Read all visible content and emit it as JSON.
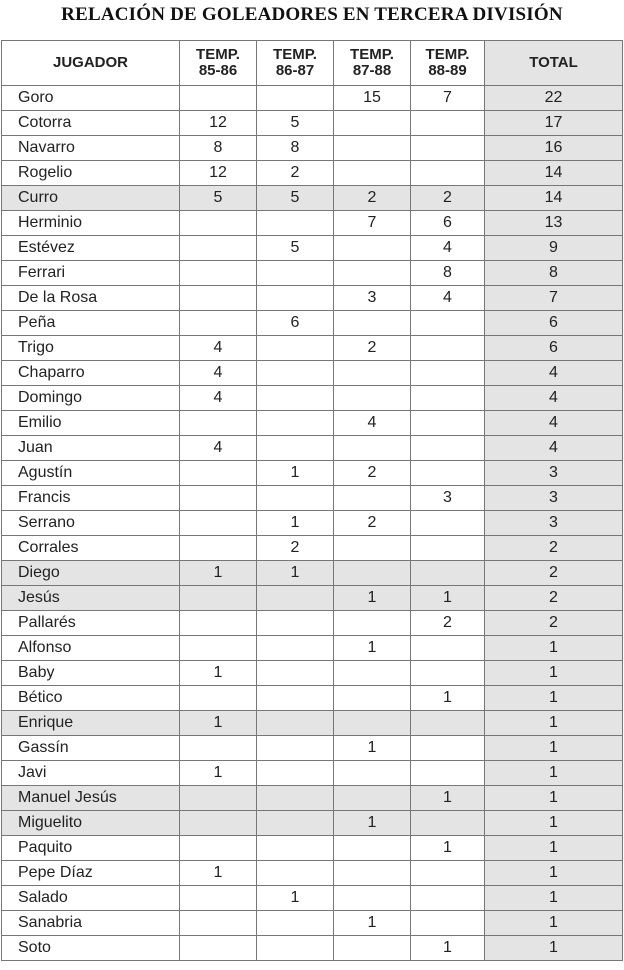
{
  "title": "RELACIÓN DE GOLEADORES EN TERCERA DIVISIÓN",
  "headers": [
    "JUGADOR",
    "TEMP.\n85-86",
    "TEMP.\n86-87",
    "TEMP.\n87-88",
    "TEMP.\n88-89",
    "TOTAL"
  ],
  "highlight_color": "#e4e4e4",
  "rows": [
    {
      "name": "Goro",
      "s1": "",
      "s2": "",
      "s3": "15",
      "s4": "7",
      "total": "22",
      "shaded": false
    },
    {
      "name": "Cotorra",
      "s1": "12",
      "s2": "5",
      "s3": "",
      "s4": "",
      "total": "17",
      "shaded": false
    },
    {
      "name": "Navarro",
      "s1": "8",
      "s2": "8",
      "s3": "",
      "s4": "",
      "total": "16",
      "shaded": false
    },
    {
      "name": "Rogelio",
      "s1": "12",
      "s2": "2",
      "s3": "",
      "s4": "",
      "total": "14",
      "shaded": false
    },
    {
      "name": "Curro",
      "s1": "5",
      "s2": "5",
      "s3": "2",
      "s4": "2",
      "total": "14",
      "shaded": true
    },
    {
      "name": "Herminio",
      "s1": "",
      "s2": "",
      "s3": "7",
      "s4": "6",
      "total": "13",
      "shaded": false
    },
    {
      "name": "Estévez",
      "s1": "",
      "s2": "5",
      "s3": "",
      "s4": "4",
      "total": "9",
      "shaded": false
    },
    {
      "name": "Ferrari",
      "s1": "",
      "s2": "",
      "s3": "",
      "s4": "8",
      "total": "8",
      "shaded": false
    },
    {
      "name": "De la Rosa",
      "s1": "",
      "s2": "",
      "s3": "3",
      "s4": "4",
      "total": "7",
      "shaded": false
    },
    {
      "name": "Peña",
      "s1": "",
      "s2": "6",
      "s3": "",
      "s4": "",
      "total": "6",
      "shaded": false
    },
    {
      "name": "Trigo",
      "s1": "4",
      "s2": "",
      "s3": "2",
      "s4": "",
      "total": "6",
      "shaded": false
    },
    {
      "name": "Chaparro",
      "s1": "4",
      "s2": "",
      "s3": "",
      "s4": "",
      "total": "4",
      "shaded": false
    },
    {
      "name": "Domingo",
      "s1": "4",
      "s2": "",
      "s3": "",
      "s4": "",
      "total": "4",
      "shaded": false
    },
    {
      "name": "Emilio",
      "s1": "",
      "s2": "",
      "s3": "4",
      "s4": "",
      "total": "4",
      "shaded": false
    },
    {
      "name": "Juan",
      "s1": "4",
      "s2": "",
      "s3": "",
      "s4": "",
      "total": "4",
      "shaded": false
    },
    {
      "name": "Agustín",
      "s1": "",
      "s2": "1",
      "s3": "2",
      "s4": "",
      "total": "3",
      "shaded": false
    },
    {
      "name": "Francis",
      "s1": "",
      "s2": "",
      "s3": "",
      "s4": "3",
      "total": "3",
      "shaded": false
    },
    {
      "name": "Serrano",
      "s1": "",
      "s2": "1",
      "s3": "2",
      "s4": "",
      "total": "3",
      "shaded": false
    },
    {
      "name": "Corrales",
      "s1": "",
      "s2": "2",
      "s3": "",
      "s4": "",
      "total": "2",
      "shaded": false
    },
    {
      "name": "Diego",
      "s1": "1",
      "s2": "1",
      "s3": "",
      "s4": "",
      "total": "2",
      "shaded": true
    },
    {
      "name": "Jesús",
      "s1": "",
      "s2": "",
      "s3": "1",
      "s4": "1",
      "total": "2",
      "shaded": true
    },
    {
      "name": "Pallarés",
      "s1": "",
      "s2": "",
      "s3": "",
      "s4": "2",
      "total": "2",
      "shaded": false
    },
    {
      "name": "Alfonso",
      "s1": "",
      "s2": "",
      "s3": "1",
      "s4": "",
      "total": "1",
      "shaded": false
    },
    {
      "name": "Baby",
      "s1": "1",
      "s2": "",
      "s3": "",
      "s4": "",
      "total": "1",
      "shaded": false
    },
    {
      "name": "Bético",
      "s1": "",
      "s2": "",
      "s3": "",
      "s4": "1",
      "total": "1",
      "shaded": false
    },
    {
      "name": "Enrique",
      "s1": "1",
      "s2": "",
      "s3": "",
      "s4": "",
      "total": "1",
      "shaded": true
    },
    {
      "name": "Gassín",
      "s1": "",
      "s2": "",
      "s3": "1",
      "s4": "",
      "total": "1",
      "shaded": false
    },
    {
      "name": "Javi",
      "s1": "1",
      "s2": "",
      "s3": "",
      "s4": "",
      "total": "1",
      "shaded": false
    },
    {
      "name": "Manuel Jesús",
      "s1": "",
      "s2": "",
      "s3": "",
      "s4": "1",
      "total": "1",
      "shaded": true
    },
    {
      "name": "Miguelito",
      "s1": "",
      "s2": "",
      "s3": "1",
      "s4": "",
      "total": "1",
      "shaded": true
    },
    {
      "name": "Paquito",
      "s1": "",
      "s2": "",
      "s3": "",
      "s4": "1",
      "total": "1",
      "shaded": false
    },
    {
      "name": "Pepe Díaz",
      "s1": "1",
      "s2": "",
      "s3": "",
      "s4": "",
      "total": "1",
      "shaded": false
    },
    {
      "name": "Salado",
      "s1": "",
      "s2": "1",
      "s3": "",
      "s4": "",
      "total": "1",
      "shaded": false
    },
    {
      "name": "Sanabria",
      "s1": "",
      "s2": "",
      "s3": "1",
      "s4": "",
      "total": "1",
      "shaded": false
    },
    {
      "name": "Soto",
      "s1": "",
      "s2": "",
      "s3": "",
      "s4": "1",
      "total": "1",
      "shaded": false
    }
  ]
}
